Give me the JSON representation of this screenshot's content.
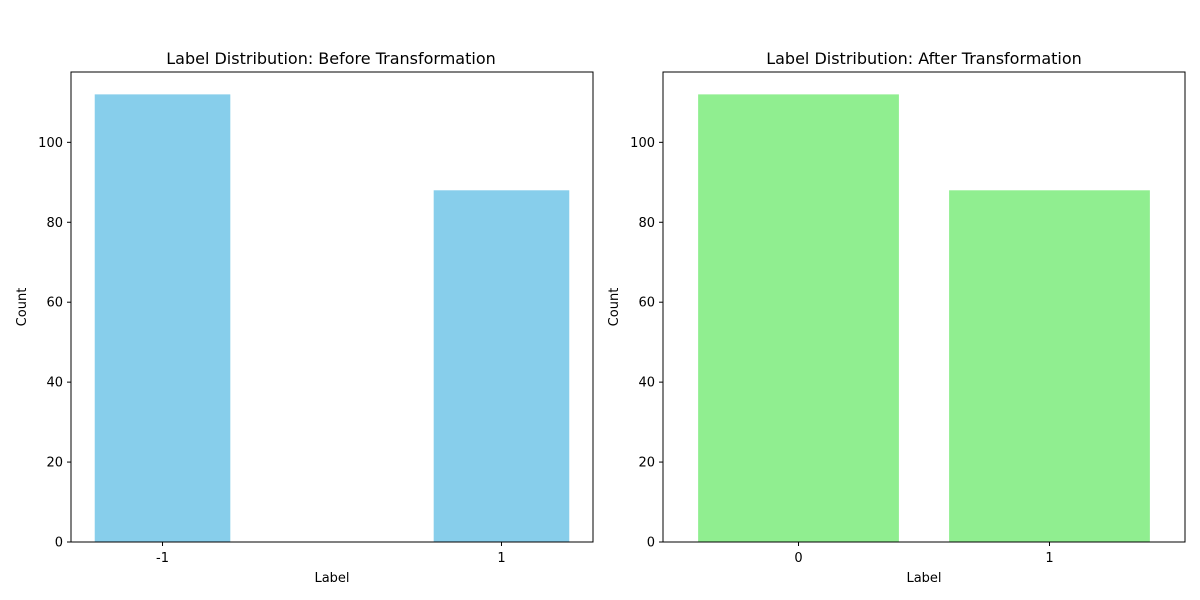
{
  "chart_data": [
    {
      "type": "bar",
      "title": "Label Distribution: Before Transformation",
      "xlabel": "Label",
      "ylabel": "Count",
      "x": [
        -1,
        1
      ],
      "tick_labels": [
        "-1",
        "1"
      ],
      "values": [
        112,
        88
      ],
      "bar_width": 0.8,
      "xlim": [
        -1.54,
        1.54
      ],
      "ylim": [
        0,
        117.6
      ],
      "yticks": [
        0,
        20,
        40,
        60,
        80,
        100
      ],
      "color": "#87ceeb",
      "grid": false
    },
    {
      "type": "bar",
      "title": "Label Distribution: After Transformation",
      "xlabel": "Label",
      "ylabel": "Count",
      "x": [
        0,
        1
      ],
      "tick_labels": [
        "0",
        "1"
      ],
      "values": [
        112,
        88
      ],
      "bar_width": 0.8,
      "xlim": [
        -0.54,
        1.54
      ],
      "ylim": [
        0,
        117.6
      ],
      "yticks": [
        0,
        20,
        40,
        60,
        80,
        100
      ],
      "color": "#90ee90",
      "grid": false
    }
  ]
}
